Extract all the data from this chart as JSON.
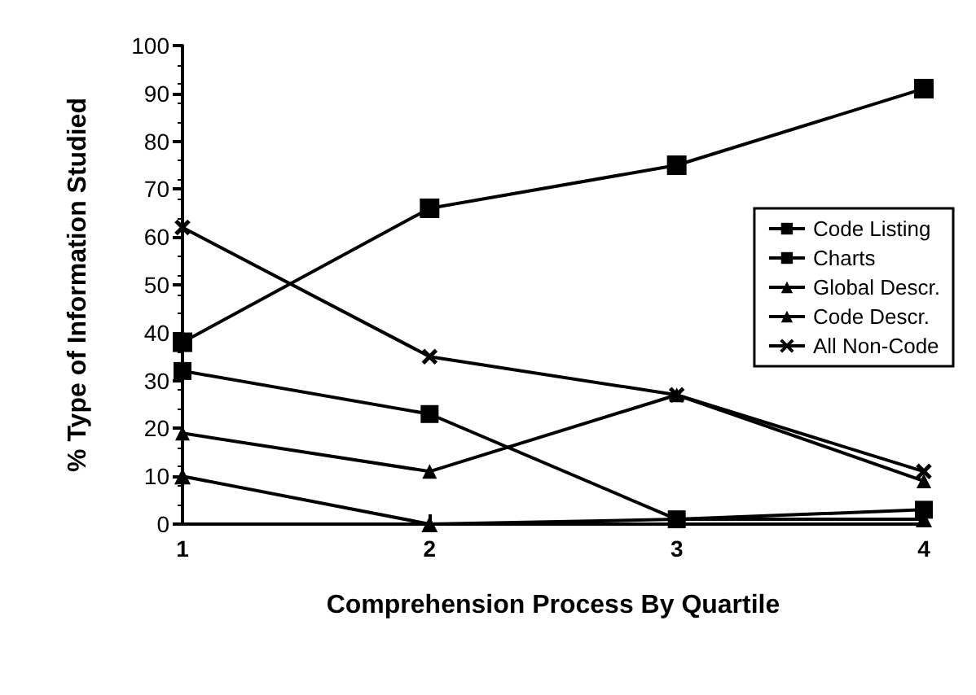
{
  "chart_data": {
    "type": "line",
    "xlabel": "Comprehension Process By Quartile",
    "ylabel": "% Type of Information Studied",
    "x": [
      1,
      2,
      3,
      4
    ],
    "xlim": [
      1,
      4
    ],
    "xticks": [
      1,
      2,
      3,
      4
    ],
    "ylim": [
      0,
      100
    ],
    "yticks": [
      0,
      10,
      20,
      30,
      40,
      50,
      60,
      70,
      80,
      90,
      100
    ],
    "grid": false,
    "legend": "right",
    "line_style": "solid",
    "series": [
      {
        "name": "Code Listing",
        "color": "#000000",
        "marker": "square",
        "values": [
          38,
          66,
          75,
          91
        ]
      },
      {
        "name": "Charts",
        "color": "#000000",
        "marker": "square",
        "values": [
          32,
          23,
          1,
          3
        ]
      },
      {
        "name": "Global Descr.",
        "color": "#000000",
        "marker": "triangle",
        "values": [
          10,
          0,
          1,
          1
        ]
      },
      {
        "name": "Code Descr.",
        "color": "#000000",
        "marker": "triangle",
        "values": [
          19,
          11,
          27,
          9
        ]
      },
      {
        "name": "All Non-Code",
        "color": "#000000",
        "marker": "cross",
        "values": [
          62,
          35,
          27,
          11
        ]
      }
    ]
  }
}
